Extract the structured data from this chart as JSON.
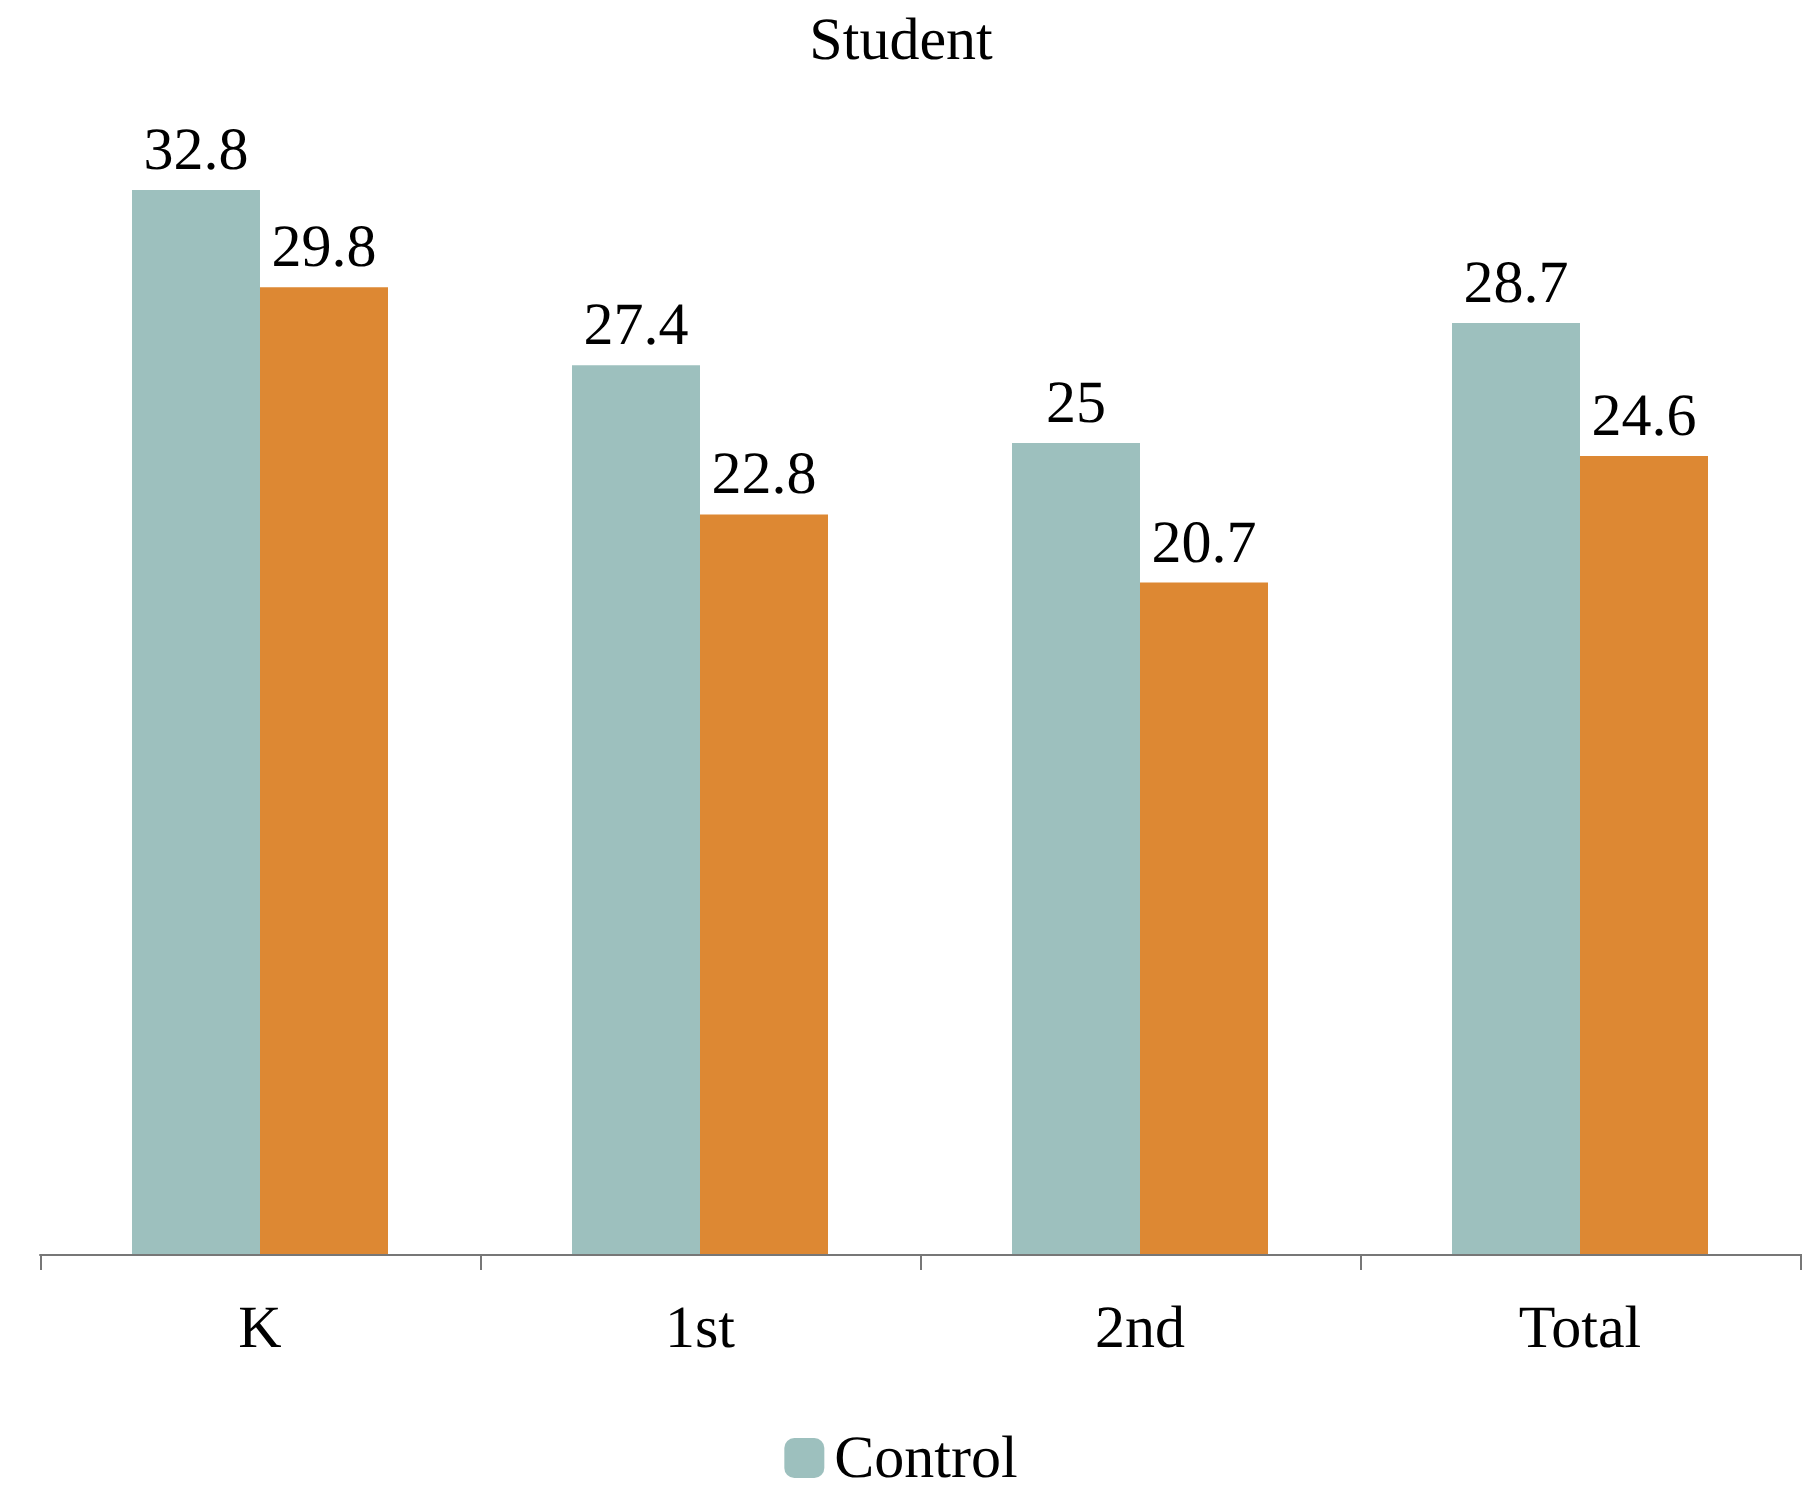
{
  "chart_data": {
    "type": "bar",
    "title": "Student",
    "categories": [
      "K",
      "1st",
      "2nd",
      "Total"
    ],
    "series": [
      {
        "name": "Control",
        "color": "#9dc0be",
        "values": [
          32.8,
          27.4,
          25,
          28.7
        ]
      },
      {
        "color": "#dd8833",
        "values": [
          29.8,
          22.8,
          20.7,
          24.6
        ]
      }
    ],
    "data_labels": true,
    "legend": "bottom"
  }
}
